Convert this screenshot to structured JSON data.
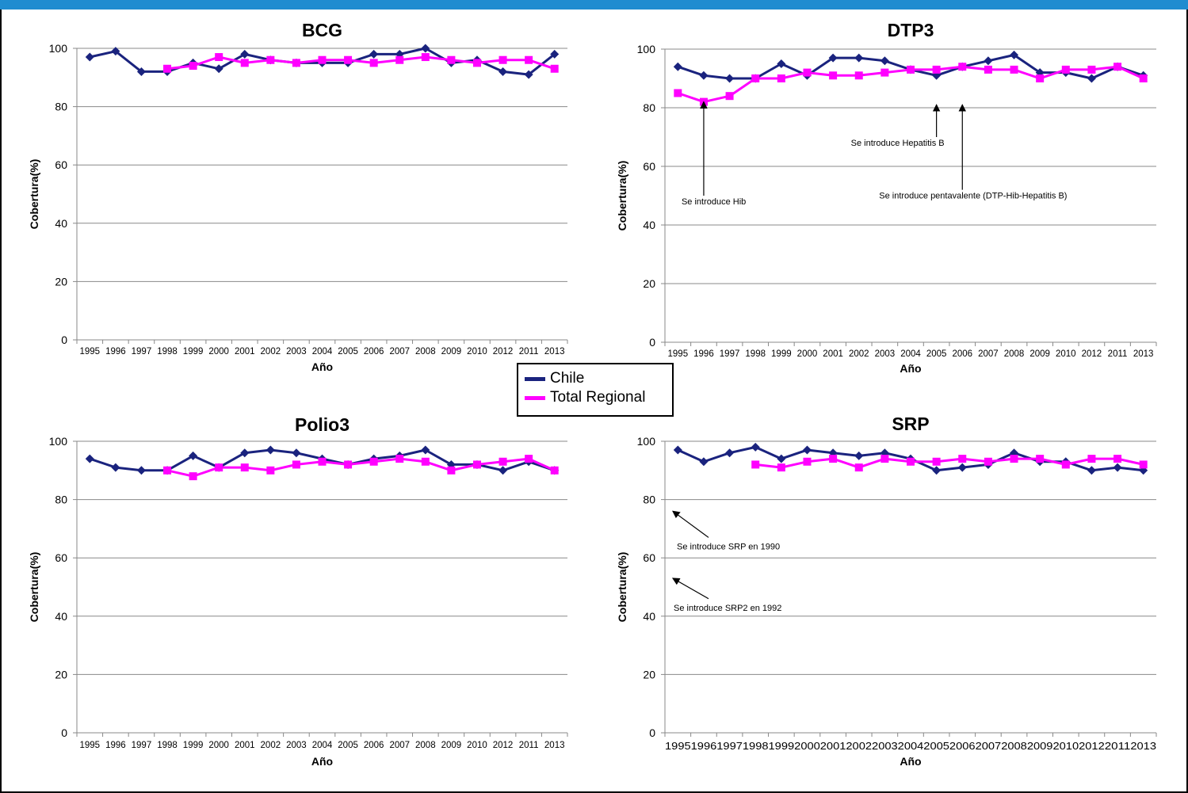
{
  "legend": {
    "items": [
      {
        "label": "Chile",
        "color": "#1a237e"
      },
      {
        "label": "Total Regional",
        "color": "#ff00ff"
      }
    ]
  },
  "chart_data": [
    {
      "type": "line",
      "title": "BCG",
      "xlabel": "Año",
      "ylabel": "Cobertura(%)",
      "ylim": [
        0,
        100
      ],
      "yticks": [
        0,
        20,
        40,
        60,
        80,
        100
      ],
      "grid": true,
      "categories": [
        "1995",
        "1996",
        "1997",
        "1998",
        "1999",
        "2000",
        "2001",
        "2002",
        "2003",
        "2004",
        "2005",
        "2006",
        "2007",
        "2008",
        "2009",
        "2010",
        "2012",
        "2011",
        "2013"
      ],
      "series": [
        {
          "name": "Chile",
          "color": "#1a237e",
          "marker": "diamond",
          "values": [
            97,
            99,
            92,
            92,
            95,
            93,
            98,
            96,
            95,
            95,
            95,
            98,
            98,
            100,
            95,
            96,
            92,
            91,
            98
          ]
        },
        {
          "name": "Total Regional",
          "color": "#ff00ff",
          "marker": "square",
          "values": [
            null,
            null,
            null,
            93,
            94,
            97,
            95,
            96,
            95,
            96,
            96,
            95,
            96,
            97,
            96,
            95,
            96,
            96,
            93
          ]
        }
      ],
      "annotations": []
    },
    {
      "type": "line",
      "title": "DTP3",
      "xlabel": "Año",
      "ylabel": "Cobertura(%)",
      "ylim": [
        0,
        100
      ],
      "yticks": [
        0,
        20,
        40,
        60,
        80,
        100
      ],
      "grid": true,
      "categories": [
        "1995",
        "1996",
        "1997",
        "1998",
        "1999",
        "2000",
        "2001",
        "2002",
        "2003",
        "2004",
        "2005",
        "2006",
        "2007",
        "2008",
        "2009",
        "2010",
        "2012",
        "2011",
        "2013"
      ],
      "series": [
        {
          "name": "Chile",
          "color": "#1a237e",
          "marker": "diamond",
          "values": [
            94,
            91,
            90,
            90,
            95,
            91,
            97,
            97,
            96,
            93,
            91,
            94,
            96,
            98,
            92,
            92,
            90,
            94,
            91
          ]
        },
        {
          "name": "Total Regional",
          "color": "#ff00ff",
          "marker": "square",
          "values": [
            85,
            82,
            84,
            90,
            90,
            92,
            91,
            91,
            92,
            93,
            93,
            94,
            93,
            93,
            90,
            93,
            93,
            94,
            90
          ]
        }
      ],
      "annotations": [
        {
          "text": "Se introduce Hib",
          "x_index": 1,
          "arrow_to": 82,
          "arrow_from": 50,
          "text_y": 47,
          "text_dx": -28
        },
        {
          "text": "Se introduce Hepatitis B",
          "x_index": 10,
          "arrow_to": 81,
          "arrow_from": 70,
          "text_y": 67,
          "text_dx": -108
        },
        {
          "text": "Se introduce pentavalente (DTP-Hib-Hepatitis B)",
          "x_index": 11,
          "arrow_to": 81,
          "arrow_from": 52,
          "text_y": 49,
          "text_dx": -105
        }
      ]
    },
    {
      "type": "line",
      "title": "Polio3",
      "xlabel": "Año",
      "ylabel": "Cobertura(%)",
      "ylim": [
        0,
        100
      ],
      "yticks": [
        0,
        20,
        40,
        60,
        80,
        100
      ],
      "grid": true,
      "categories": [
        "1995",
        "1996",
        "1997",
        "1998",
        "1999",
        "2000",
        "2001",
        "2002",
        "2003",
        "2004",
        "2005",
        "2006",
        "2007",
        "2008",
        "2009",
        "2010",
        "2012",
        "2011",
        "2013"
      ],
      "series": [
        {
          "name": "Chile",
          "color": "#1a237e",
          "marker": "diamond",
          "values": [
            94,
            91,
            90,
            90,
            95,
            91,
            96,
            97,
            96,
            94,
            92,
            94,
            95,
            97,
            92,
            92,
            90,
            93,
            90
          ]
        },
        {
          "name": "Total Regional",
          "color": "#ff00ff",
          "marker": "square",
          "values": [
            null,
            null,
            null,
            90,
            88,
            91,
            91,
            90,
            92,
            93,
            92,
            93,
            94,
            93,
            90,
            92,
            93,
            94,
            90
          ]
        }
      ],
      "annotations": []
    },
    {
      "type": "line",
      "title": "SRP",
      "xlabel": "Año",
      "ylabel": "Cobertura(%)",
      "ylim": [
        0,
        100
      ],
      "yticks": [
        0,
        20,
        40,
        60,
        80,
        100
      ],
      "grid": true,
      "tight_ticks": true,
      "categories": [
        "1995",
        "1996",
        "1997",
        "1998",
        "1999",
        "2000",
        "2001",
        "2002",
        "2003",
        "2004",
        "2005",
        "2006",
        "2007",
        "2008",
        "2009",
        "2010",
        "2012",
        "2011",
        "2013"
      ],
      "series": [
        {
          "name": "Chile",
          "color": "#1a237e",
          "marker": "diamond",
          "values": [
            97,
            93,
            96,
            98,
            94,
            97,
            96,
            95,
            96,
            94,
            90,
            91,
            92,
            96,
            93,
            93,
            90,
            91,
            90
          ]
        },
        {
          "name": "Total Regional",
          "color": "#ff00ff",
          "marker": "square",
          "values": [
            null,
            null,
            null,
            92,
            91,
            93,
            94,
            91,
            94,
            93,
            93,
            94,
            93,
            94,
            94,
            92,
            94,
            94,
            92
          ]
        }
      ],
      "annotations": [
        {
          "text": "Se introduce SRP en 1990",
          "diag": true,
          "x_index": 0,
          "arrow_to_y": 76,
          "arrow_from_y": 67,
          "arrow_from_dx": 45,
          "text_y": 64,
          "text_dx": 10
        },
        {
          "text": "Se introduce SRP2 en 1992",
          "diag": true,
          "x_index": 0,
          "arrow_to_y": 53,
          "arrow_from_y": 46,
          "arrow_from_dx": 45,
          "text_y": 43,
          "text_dx": 6
        }
      ]
    }
  ]
}
